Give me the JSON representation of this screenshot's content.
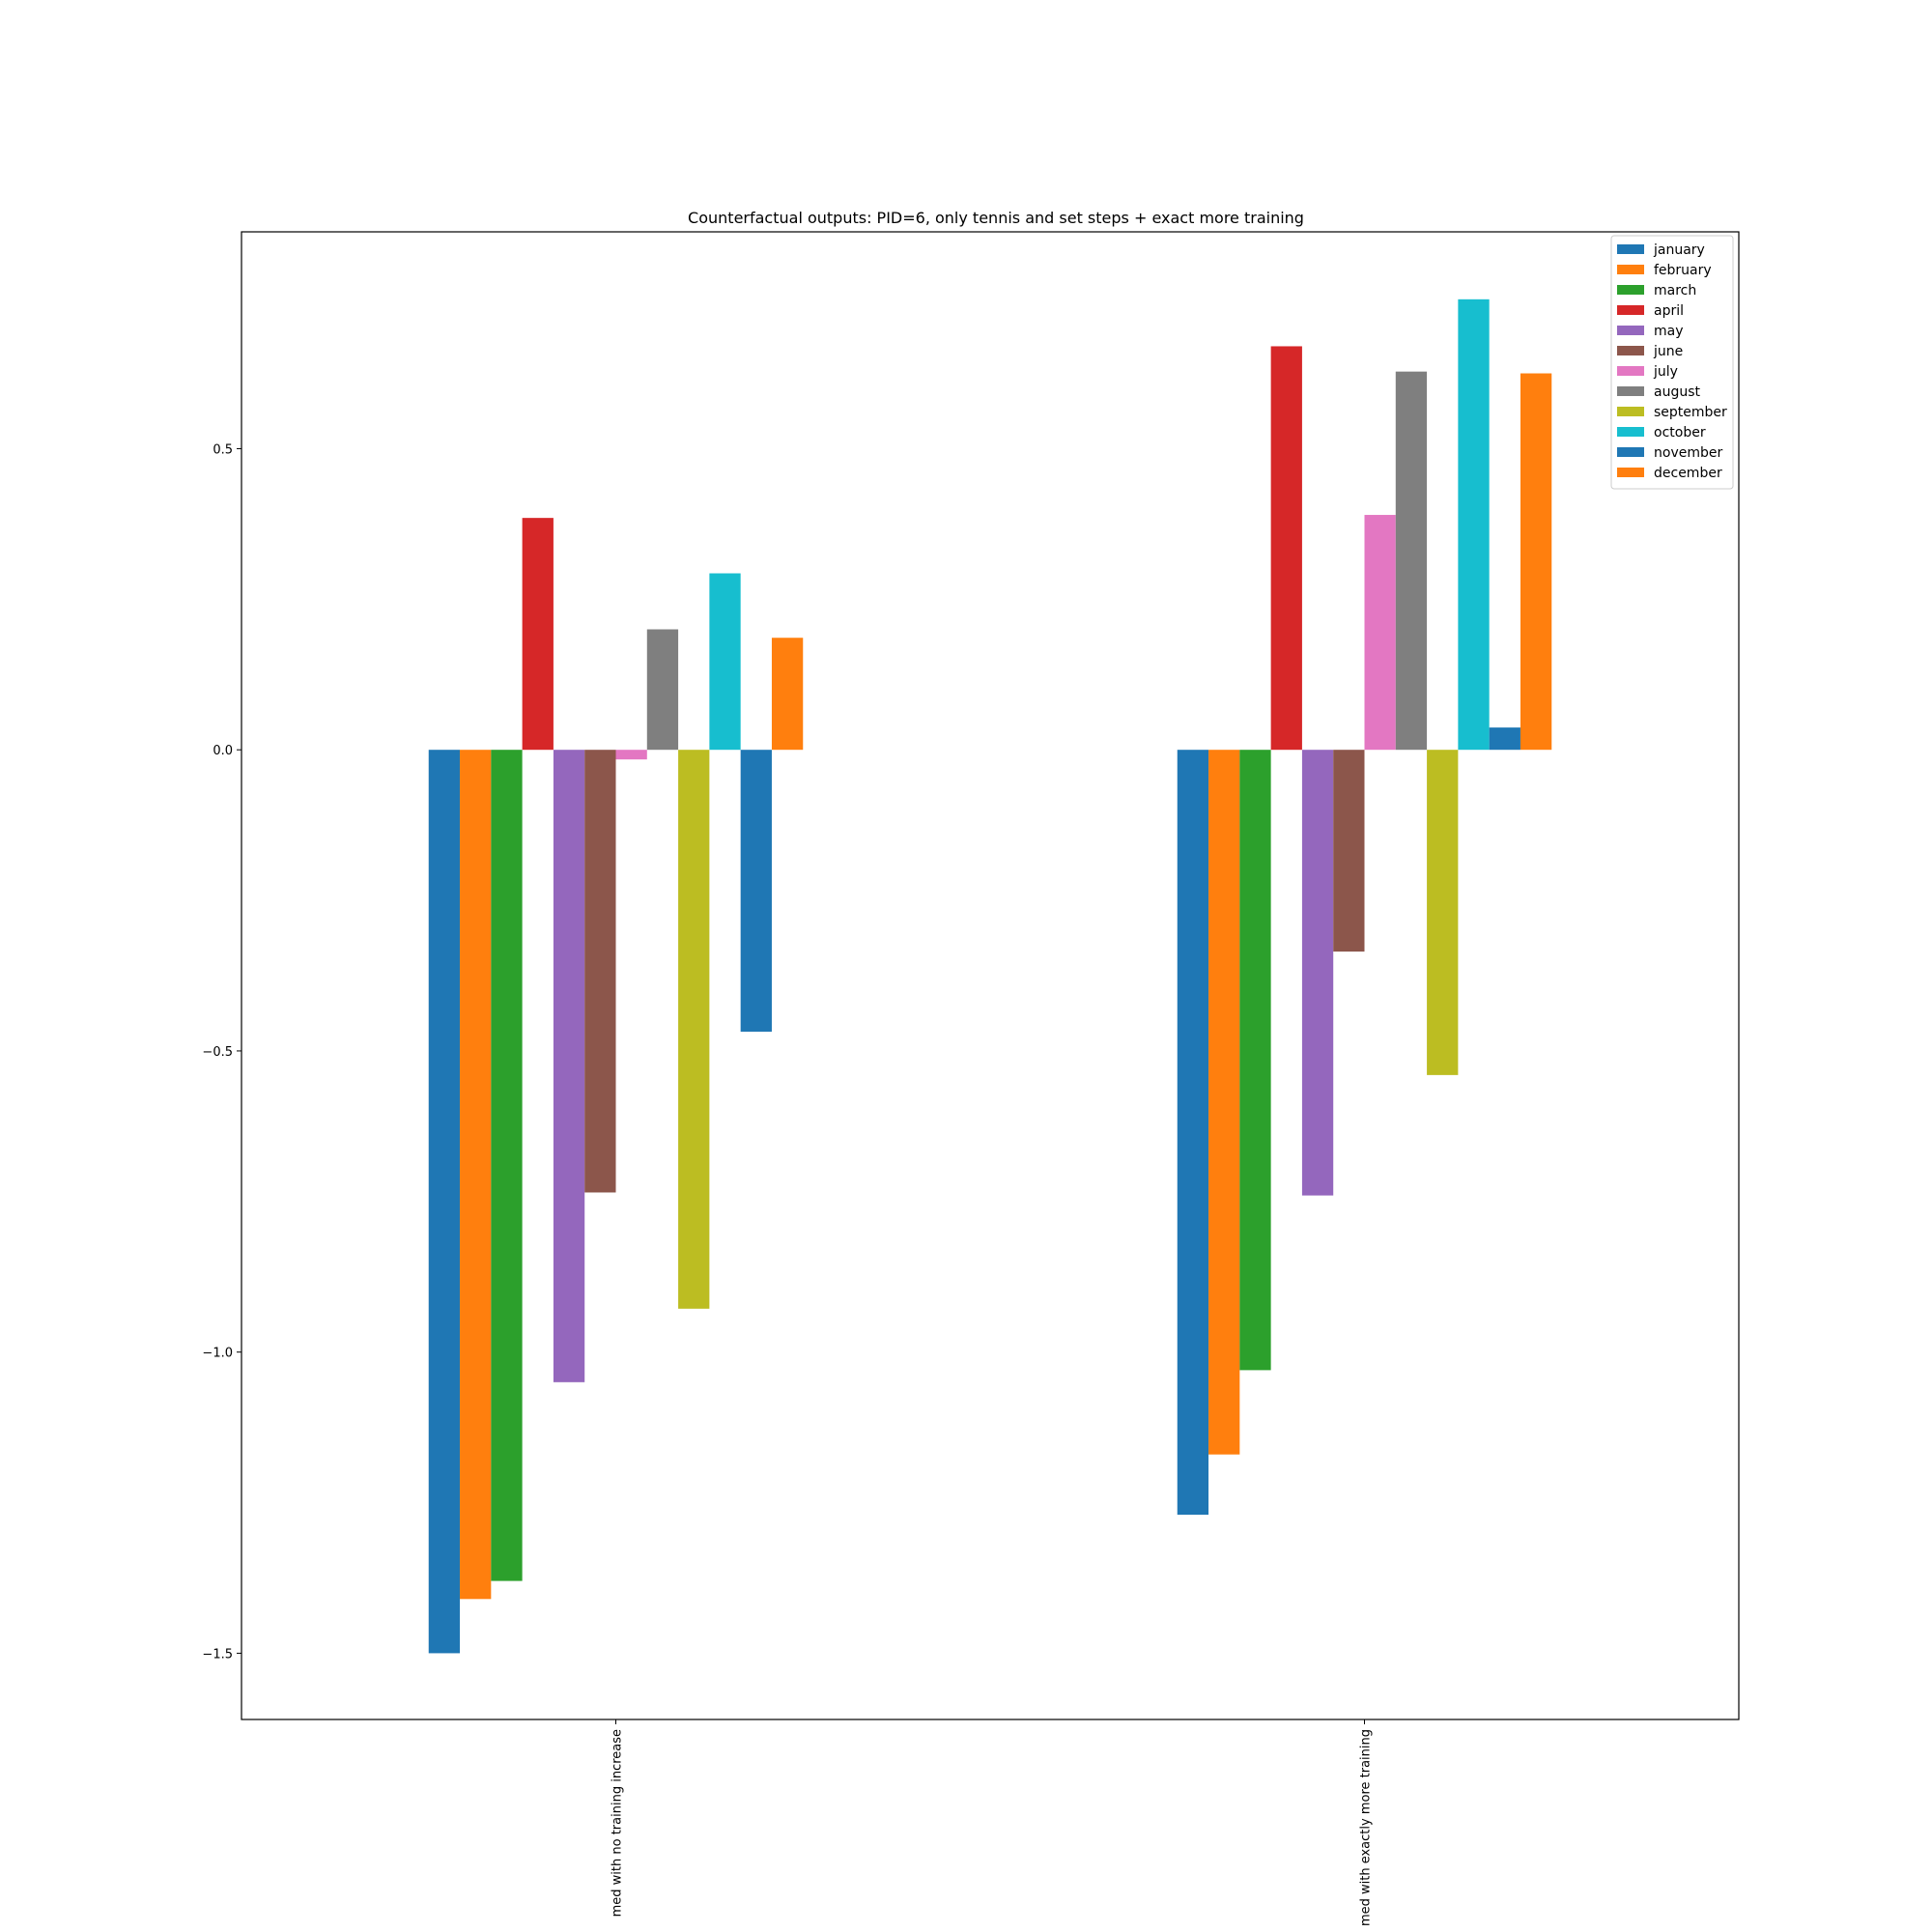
{
  "chart_data": {
    "type": "bar",
    "title": "Counterfactual outputs: PID=6, only tennis and set steps + exact more training",
    "xlabel": "",
    "ylabel": "",
    "ylim": [
      -1.61,
      0.86
    ],
    "yticks": [
      0.5,
      0.0,
      -0.5,
      -1.0,
      -1.5
    ],
    "ytick_labels": [
      "0.5",
      "0.0",
      "−0.5",
      "−1.0",
      "−1.5"
    ],
    "categories": [
      "med with no training increase",
      "med with exactly more training"
    ],
    "grid": false,
    "legend_position": "top-right",
    "series": [
      {
        "name": "january",
        "color": "#1f77b4",
        "values": [
          -1.5,
          -1.27
        ]
      },
      {
        "name": "february",
        "color": "#ff7f0e",
        "values": [
          -1.41,
          -1.17
        ]
      },
      {
        "name": "march",
        "color": "#2ca02c",
        "values": [
          -1.38,
          -1.03
        ]
      },
      {
        "name": "april",
        "color": "#d62728",
        "values": [
          0.385,
          0.67
        ]
      },
      {
        "name": "may",
        "color": "#9467bd",
        "values": [
          -1.05,
          -0.74
        ]
      },
      {
        "name": "june",
        "color": "#8c564b",
        "values": [
          -0.735,
          -0.335
        ]
      },
      {
        "name": "july",
        "color": "#e377c2",
        "values": [
          -0.016,
          0.39
        ]
      },
      {
        "name": "august",
        "color": "#7f7f7f",
        "values": [
          0.2,
          0.628
        ]
      },
      {
        "name": "september",
        "color": "#bcbd22",
        "values": [
          -0.928,
          -0.54
        ]
      },
      {
        "name": "october",
        "color": "#17becf",
        "values": [
          0.293,
          0.748
        ]
      },
      {
        "name": "november",
        "color": "#1f77b4",
        "values": [
          -0.468,
          0.037
        ]
      },
      {
        "name": "december",
        "color": "#ff7f0e",
        "values": [
          0.186,
          0.625
        ]
      }
    ]
  }
}
